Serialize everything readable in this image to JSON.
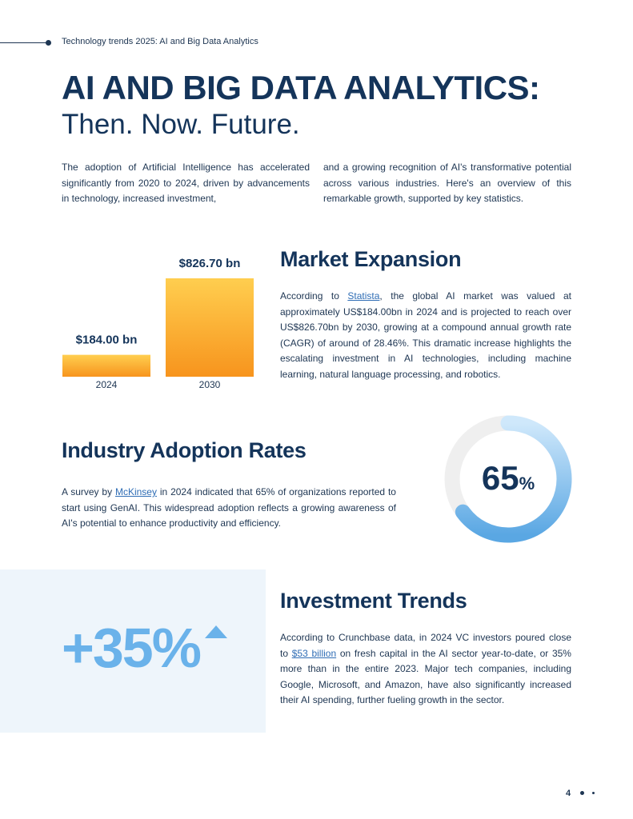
{
  "header": {
    "running_title": "Technology trends 2025: AI and Big Data Analytics"
  },
  "title": {
    "main": "AI AND BIG DATA ANALYTICS:",
    "sub": "Then. Now. Future."
  },
  "intro": {
    "left": "The adoption of Artificial Intelligence has accelerated significantly from 2020 to 2024, driven by advancements in technology, increased investment,",
    "right": "and a growing recognition of AI's transformative potential across various industries. Here's an overview of this remarkable growth, supported by key statistics."
  },
  "market": {
    "heading": "Market Expansion",
    "para_1": "According to",
    "link": "Statista",
    "para_2": ", the global AI market was valued at approximately US$184.00bn in 2024 and is projected to reach over US$826.70bn by 2030, growing at a compound annual growth rate (CAGR) of around of 28.46%. This dramatic increase highlights the escalating investment in AI technologies, including machine learning, natural language processing, and robotics."
  },
  "chart_data": {
    "type": "bar",
    "categories": [
      "2024",
      "2030"
    ],
    "values": [
      184.0,
      826.7
    ],
    "data_labels": [
      "$184.00 bn",
      "$826.70 bn"
    ],
    "colors": [
      "#fbb040",
      "#f7941d"
    ]
  },
  "adoption": {
    "heading": "Industry Adoption Rates",
    "para_1": "A survey by",
    "link": "McKinsey",
    "para_2": "in 2024 indicated that 65% of organizations reported to start using GenAI. This widespread adoption reflects a growing awareness of AI's potential to enhance productivity and efficiency.",
    "gauge_value": 65,
    "gauge_number": "65",
    "gauge_unit": "%"
  },
  "investment": {
    "big_stat": "+35%",
    "heading": "Investment Trends",
    "para_1": "According to Crunchbase data, in 2024 VC investors poured close to",
    "link": "$53 billion",
    "para_2": "on fresh capital in the AI sector year-to-date, or 35% more than in the entire 2023. Major tech companies, including Google, Microsoft, and Amazon, have also significantly increased their AI spending, further fueling growth in the sector."
  },
  "footer": {
    "page_number": "4"
  },
  "colors": {
    "navy": "#14345a",
    "accent_blue": "#6ab2ea",
    "gauge_track": "#efefef",
    "bar_orange": "#f7941d"
  }
}
